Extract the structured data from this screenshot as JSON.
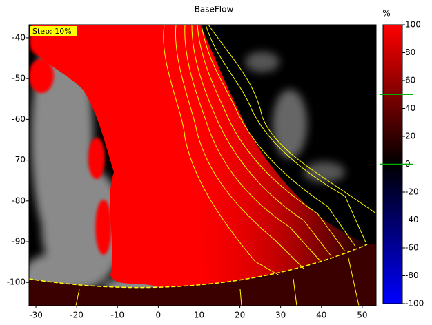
{
  "chart_data": {
    "type": "image",
    "title": "BaseFlow",
    "annotation": "Step: 10%",
    "xlim": [
      -31.7,
      53.4
    ],
    "xticks": [
      -30,
      -20,
      -10,
      0,
      10,
      20,
      30,
      40,
      50
    ],
    "ylim": [
      -105.7,
      -36.8
    ],
    "yticks": [
      -40,
      -50,
      -60,
      -70,
      -80,
      -90,
      -100
    ],
    "colorbar": {
      "label": "%",
      "clim": [
        -100,
        100
      ],
      "ticks": [
        100,
        80,
        60,
        40,
        20,
        0,
        -20,
        -40,
        -60,
        -80,
        -100
      ],
      "markers": [
        50,
        0
      ],
      "marker_color": "#00b000",
      "colors": [
        "#ff0000",
        "#000000",
        "#0000ff"
      ]
    }
  }
}
